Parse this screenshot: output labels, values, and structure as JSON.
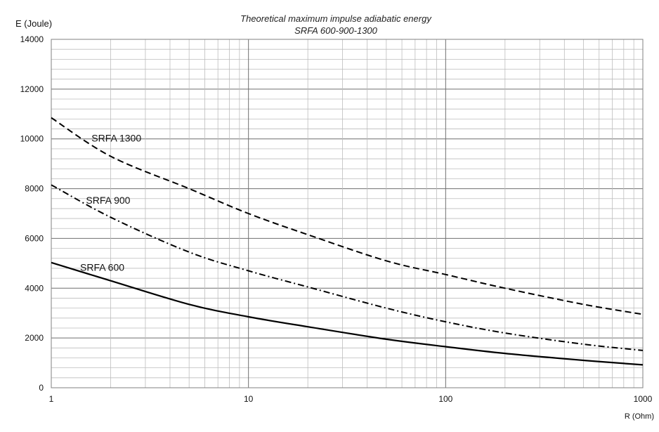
{
  "chart_data": {
    "type": "line",
    "title": "Theoretical maximum impulse adiabatic energy",
    "subtitle": "SRFA 600-900-1300",
    "xlabel": "R (Ohm)",
    "ylabel": "E (Joule)",
    "x_scale": "log",
    "xlim": [
      1,
      1000
    ],
    "ylim": [
      0,
      14000
    ],
    "x_ticks": [
      "1",
      "10",
      "100",
      "1000"
    ],
    "y_ticks": [
      "0",
      "2000",
      "4000",
      "6000",
      "8000",
      "10000",
      "12000",
      "14000"
    ],
    "grid": true,
    "x": [
      1,
      2,
      5,
      10,
      20,
      50,
      100,
      200,
      500,
      1000
    ],
    "series": [
      {
        "name": "SRFA 1300",
        "style": "dashed",
        "values": [
          10850,
          9300,
          8000,
          7000,
          6150,
          5100,
          4550,
          4000,
          3350,
          2950
        ]
      },
      {
        "name": "SRFA 900",
        "style": "dash-dot",
        "values": [
          8150,
          6850,
          5450,
          4700,
          4050,
          3200,
          2650,
          2200,
          1750,
          1500
        ]
      },
      {
        "name": "SRFA 600",
        "style": "solid",
        "values": [
          5030,
          4300,
          3350,
          2850,
          2450,
          1950,
          1650,
          1380,
          1100,
          920
        ]
      }
    ],
    "series_label_pos": [
      {
        "x": 1.6,
        "y": 9900
      },
      {
        "x": 1.5,
        "y": 7400
      },
      {
        "x": 1.4,
        "y": 4700
      }
    ]
  }
}
